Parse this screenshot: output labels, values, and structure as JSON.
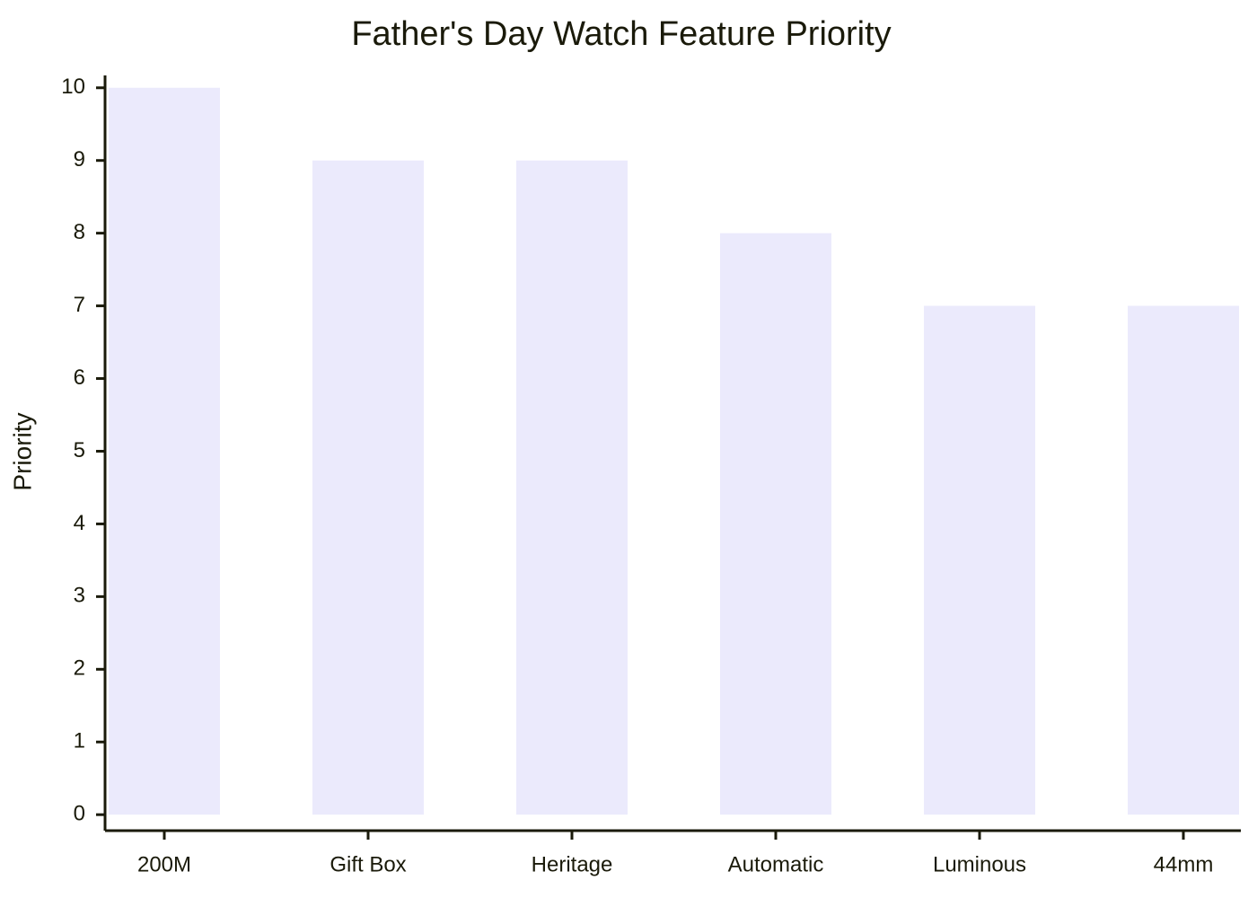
{
  "chart_data": {
    "type": "bar",
    "title": "Father's Day Watch Feature Priority",
    "y_label": "Priority",
    "categories": [
      "200M",
      "Gift Box",
      "Heritage",
      "Automatic",
      "Luminous",
      "44mm"
    ],
    "values": [
      10,
      9,
      9,
      8,
      7,
      7
    ],
    "color": "#ebeafc",
    "ylim": [
      -0.22,
      10.17
    ],
    "yticks": [
      0,
      1,
      2,
      3,
      4,
      5,
      6,
      7,
      8,
      9,
      10
    ],
    "grid": false
  }
}
